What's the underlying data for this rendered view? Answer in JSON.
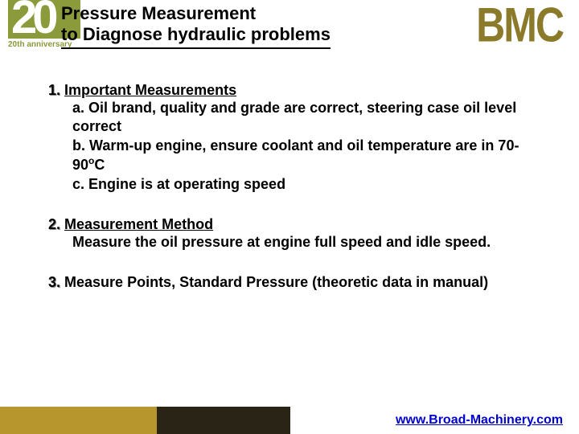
{
  "logo": {
    "twenty": "20",
    "anniversary": "20th anniversary"
  },
  "title": {
    "line1": "Pressure Measurement",
    "line2": "to Diagnose hydraulic problems"
  },
  "brand": "BMC",
  "sections": {
    "s1": {
      "num": "1.",
      "title": "Important  Measurements",
      "a": "a. Oil brand, quality and grade are correct, steering case oil level correct",
      "b_pre": "b. Warm-up engine, ensure coolant and oil temperature are in 70-90",
      "b_sup": "o",
      "b_post": "C",
      "c": "c. Engine is at operating speed"
    },
    "s2": {
      "num": "2.",
      "title": "Measurement Method",
      "body": "Measure the oil pressure at engine full speed and idle speed."
    },
    "s3": {
      "num": "3.",
      "title": "Measure Points, Standard Pressure (theoretic data in manual)"
    }
  },
  "footer": {
    "link": "www.Broad-Machinery.com"
  },
  "colors": {
    "olive": "#8b9a3a",
    "bmc": "#8b7a2a",
    "gold_bar": "#b8962e",
    "dark_bar": "#2a2416",
    "link": "#0000cc"
  }
}
